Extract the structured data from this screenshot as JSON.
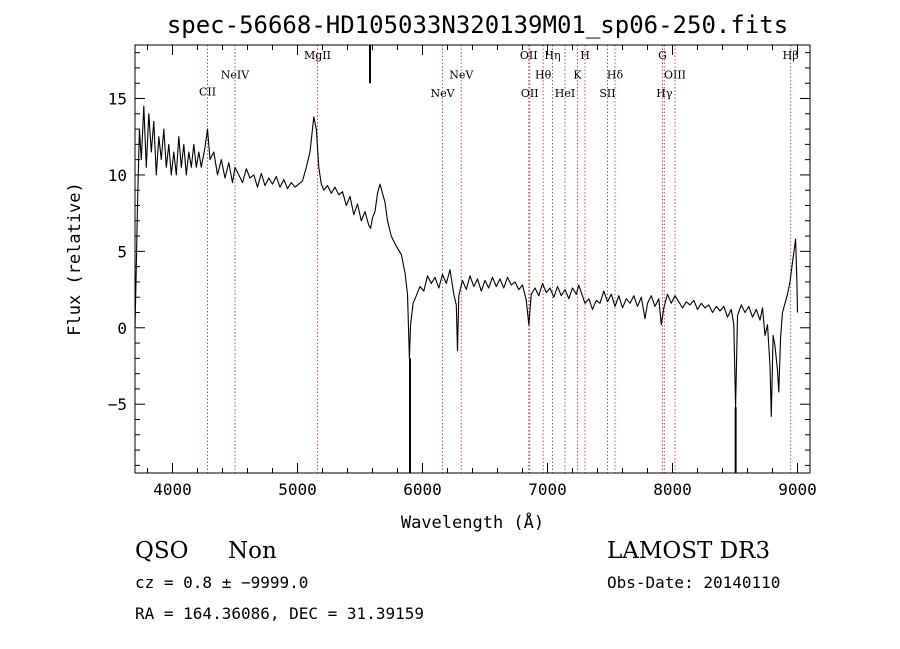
{
  "chart_data": {
    "type": "line",
    "title": "spec-56668-HD105033N320139M01_sp06-250.fits",
    "xlabel": "Wavelength (Å)",
    "ylabel": "Flux (relative)",
    "xlim": [
      3700,
      9100
    ],
    "ylim": [
      -9.5,
      18.5
    ],
    "x_ticks": [
      4000,
      5000,
      6000,
      7000,
      8000,
      9000
    ],
    "y_ticks": [
      -5,
      0,
      5,
      10,
      15
    ],
    "grid": false,
    "series": [
      {
        "color": "#000000",
        "points": [
          [
            3700,
            0.0
          ],
          [
            3710,
            4.0
          ],
          [
            3720,
            8.0
          ],
          [
            3735,
            13.0
          ],
          [
            3750,
            11.0
          ],
          [
            3770,
            14.5
          ],
          [
            3790,
            10.5
          ],
          [
            3810,
            14.0
          ],
          [
            3830,
            11.5
          ],
          [
            3850,
            13.5
          ],
          [
            3870,
            10.0
          ],
          [
            3890,
            12.5
          ],
          [
            3910,
            11.0
          ],
          [
            3930,
            13.0
          ],
          [
            3950,
            10.5
          ],
          [
            3970,
            12.0
          ],
          [
            3990,
            10.0
          ],
          [
            4010,
            11.5
          ],
          [
            4030,
            10.0
          ],
          [
            4050,
            12.5
          ],
          [
            4070,
            10.5
          ],
          [
            4090,
            12.0
          ],
          [
            4110,
            10.0
          ],
          [
            4130,
            11.5
          ],
          [
            4150,
            10.5
          ],
          [
            4170,
            12.0
          ],
          [
            4190,
            10.5
          ],
          [
            4210,
            11.5
          ],
          [
            4230,
            10.5
          ],
          [
            4260,
            11.8
          ],
          [
            4280,
            13.0
          ],
          [
            4300,
            11.0
          ],
          [
            4330,
            11.5
          ],
          [
            4360,
            10.0
          ],
          [
            4390,
            11.0
          ],
          [
            4420,
            9.8
          ],
          [
            4450,
            10.8
          ],
          [
            4480,
            9.5
          ],
          [
            4500,
            10.5
          ],
          [
            4530,
            10.0
          ],
          [
            4560,
            9.5
          ],
          [
            4590,
            10.4
          ],
          [
            4620,
            9.8
          ],
          [
            4650,
            10.0
          ],
          [
            4680,
            9.2
          ],
          [
            4710,
            10.1
          ],
          [
            4740,
            9.3
          ],
          [
            4770,
            9.8
          ],
          [
            4800,
            9.4
          ],
          [
            4830,
            9.9
          ],
          [
            4860,
            9.2
          ],
          [
            4890,
            9.7
          ],
          [
            4920,
            9.1
          ],
          [
            4950,
            9.5
          ],
          [
            4980,
            9.2
          ],
          [
            5010,
            9.4
          ],
          [
            5040,
            9.6
          ],
          [
            5070,
            10.5
          ],
          [
            5100,
            11.5
          ],
          [
            5130,
            13.8
          ],
          [
            5150,
            13.0
          ],
          [
            5170,
            10.5
          ],
          [
            5190,
            9.4
          ],
          [
            5210,
            9.0
          ],
          [
            5240,
            9.3
          ],
          [
            5270,
            8.8
          ],
          [
            5300,
            9.2
          ],
          [
            5330,
            8.7
          ],
          [
            5360,
            8.9
          ],
          [
            5390,
            8.0
          ],
          [
            5420,
            8.6
          ],
          [
            5450,
            7.4
          ],
          [
            5480,
            8.1
          ],
          [
            5510,
            7.0
          ],
          [
            5540,
            7.6
          ],
          [
            5570,
            6.7
          ],
          [
            5585,
            6.5
          ],
          [
            5600,
            7.2
          ],
          [
            5620,
            7.6
          ],
          [
            5640,
            8.8
          ],
          [
            5660,
            9.4
          ],
          [
            5680,
            8.8
          ],
          [
            5700,
            8.2
          ],
          [
            5720,
            7.0
          ],
          [
            5750,
            6.0
          ],
          [
            5780,
            5.5
          ],
          [
            5800,
            5.2
          ],
          [
            5830,
            4.8
          ],
          [
            5860,
            3.6
          ],
          [
            5880,
            2.2
          ],
          [
            5895,
            -2.0
          ],
          [
            5905,
            0.2
          ],
          [
            5925,
            1.6
          ],
          [
            5950,
            2.1
          ],
          [
            5980,
            2.7
          ],
          [
            6010,
            2.4
          ],
          [
            6040,
            3.4
          ],
          [
            6070,
            2.9
          ],
          [
            6100,
            3.3
          ],
          [
            6130,
            2.6
          ],
          [
            6160,
            3.5
          ],
          [
            6190,
            2.9
          ],
          [
            6220,
            3.8
          ],
          [
            6250,
            2.2
          ],
          [
            6270,
            1.5
          ],
          [
            6280,
            -1.5
          ],
          [
            6290,
            2.1
          ],
          [
            6320,
            3.1
          ],
          [
            6350,
            2.5
          ],
          [
            6380,
            3.4
          ],
          [
            6410,
            2.7
          ],
          [
            6440,
            3.2
          ],
          [
            6470,
            2.4
          ],
          [
            6500,
            3.1
          ],
          [
            6530,
            2.6
          ],
          [
            6560,
            3.3
          ],
          [
            6590,
            2.7
          ],
          [
            6620,
            3.2
          ],
          [
            6650,
            2.6
          ],
          [
            6680,
            3.3
          ],
          [
            6710,
            2.8
          ],
          [
            6740,
            3.0
          ],
          [
            6770,
            2.5
          ],
          [
            6800,
            2.8
          ],
          [
            6830,
            1.8
          ],
          [
            6850,
            0.2
          ],
          [
            6870,
            2.2
          ],
          [
            6900,
            2.6
          ],
          [
            6930,
            2.1
          ],
          [
            6960,
            2.9
          ],
          [
            6990,
            2.3
          ],
          [
            7020,
            2.6
          ],
          [
            7050,
            2.0
          ],
          [
            7080,
            2.7
          ],
          [
            7110,
            2.1
          ],
          [
            7140,
            2.5
          ],
          [
            7170,
            1.9
          ],
          [
            7200,
            2.6
          ],
          [
            7230,
            2.2
          ],
          [
            7250,
            2.8
          ],
          [
            7270,
            2.3
          ],
          [
            7300,
            1.6
          ],
          [
            7330,
            1.9
          ],
          [
            7360,
            1.2
          ],
          [
            7390,
            1.8
          ],
          [
            7420,
            1.6
          ],
          [
            7450,
            2.4
          ],
          [
            7480,
            1.7
          ],
          [
            7510,
            2.2
          ],
          [
            7540,
            1.4
          ],
          [
            7570,
            2.1
          ],
          [
            7600,
            1.3
          ],
          [
            7630,
            1.9
          ],
          [
            7660,
            1.6
          ],
          [
            7690,
            2.1
          ],
          [
            7720,
            1.4
          ],
          [
            7750,
            2.0
          ],
          [
            7780,
            0.6
          ],
          [
            7800,
            1.6
          ],
          [
            7830,
            2.1
          ],
          [
            7860,
            1.4
          ],
          [
            7890,
            1.9
          ],
          [
            7910,
            0.2
          ],
          [
            7930,
            1.3
          ],
          [
            7960,
            2.2
          ],
          [
            7990,
            1.6
          ],
          [
            8020,
            2.1
          ],
          [
            8050,
            1.7
          ],
          [
            8080,
            1.3
          ],
          [
            8110,
            1.7
          ],
          [
            8140,
            1.5
          ],
          [
            8170,
            1.8
          ],
          [
            8200,
            1.2
          ],
          [
            8230,
            1.6
          ],
          [
            8260,
            1.3
          ],
          [
            8290,
            1.5
          ],
          [
            8320,
            1.0
          ],
          [
            8350,
            1.4
          ],
          [
            8380,
            1.1
          ],
          [
            8410,
            1.4
          ],
          [
            8440,
            0.7
          ],
          [
            8470,
            1.2
          ],
          [
            8490,
            0.2
          ],
          [
            8505,
            -5.2
          ],
          [
            8520,
            0.8
          ],
          [
            8550,
            1.5
          ],
          [
            8580,
            1.0
          ],
          [
            8610,
            1.4
          ],
          [
            8640,
            0.7
          ],
          [
            8670,
            1.2
          ],
          [
            8700,
            0.5
          ],
          [
            8720,
            1.3
          ],
          [
            8740,
            -0.5
          ],
          [
            8760,
            0.2
          ],
          [
            8780,
            -2.5
          ],
          [
            8790,
            -5.8
          ],
          [
            8805,
            -0.5
          ],
          [
            8820,
            -1.2
          ],
          [
            8840,
            -2.8
          ],
          [
            8850,
            -4.2
          ],
          [
            8865,
            -0.6
          ],
          [
            8880,
            1.0
          ],
          [
            8900,
            1.6
          ],
          [
            8920,
            2.2
          ],
          [
            8940,
            3.0
          ],
          [
            8960,
            4.3
          ],
          [
            8975,
            5.2
          ],
          [
            8985,
            5.8
          ],
          [
            8995,
            3.0
          ],
          [
            9000,
            1.0
          ]
        ]
      }
    ],
    "spikes": [
      {
        "x": 5580,
        "y0": 16.0,
        "y1": 18.5
      },
      {
        "x": 5900,
        "y0": -2.0,
        "y1": -9.5
      },
      {
        "x": 8505,
        "y0": -5.2,
        "y1": -9.5
      }
    ],
    "line_markers": [
      {
        "x": 4280,
        "label": "CII",
        "y_label": 15.2
      },
      {
        "x": 4500,
        "label": "NeIV",
        "y_label": 16.3
      },
      {
        "x": 5160,
        "label": "MgII",
        "y_label": 17.6
      },
      {
        "x": 6160,
        "label": "NeV",
        "y_label": 15.1
      },
      {
        "x": 6310,
        "label": "NeV",
        "y_label": 16.3
      },
      {
        "x": 6850,
        "label": "OII",
        "y_label": 17.6
      },
      {
        "x": 6858,
        "label": "OII",
        "y_label": 15.1
      },
      {
        "x": 6965,
        "label": "Hθ",
        "y_label": 16.3
      },
      {
        "x": 7040,
        "label": "Hη",
        "y_label": 17.6
      },
      {
        "x": 7140,
        "label": "HeI",
        "y_label": 15.1
      },
      {
        "x": 7240,
        "label": "K",
        "y_label": 16.3
      },
      {
        "x": 7300,
        "label": "H",
        "y_label": 17.6
      },
      {
        "x": 7480,
        "label": "SII",
        "y_label": 15.1
      },
      {
        "x": 7540,
        "label": "Hδ",
        "y_label": 16.3
      },
      {
        "x": 7920,
        "label": "G",
        "y_label": 17.6
      },
      {
        "x": 7935,
        "label": "Hγ",
        "y_label": 15.1
      },
      {
        "x": 8020,
        "label": "OIII",
        "y_label": 16.3
      },
      {
        "x": 8945,
        "label": "Hβ",
        "y_label": 17.6
      }
    ],
    "line_color": "#c0504d"
  },
  "info": {
    "class": "QSO",
    "subclass": "Non",
    "cz": "cz = 0.8 ± −9999.0",
    "radec": "RA = 164.36086, DEC =  31.39159",
    "survey": "LAMOST DR3",
    "obsdate": "Obs-Date: 20140110"
  }
}
